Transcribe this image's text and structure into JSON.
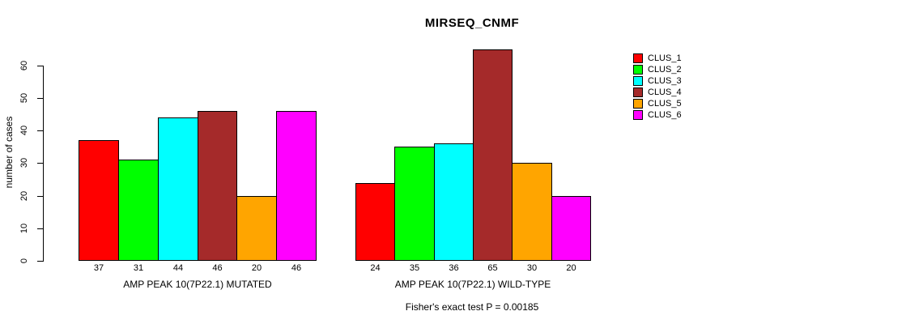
{
  "chart_data": {
    "type": "bar",
    "title": "MIRSEQ_CNMF",
    "ylabel": "number of cases",
    "yticks": [
      0,
      10,
      20,
      30,
      40,
      50,
      60
    ],
    "ylim": [
      0,
      65
    ],
    "grid": false,
    "legend_position": "right",
    "categories": [
      "AMP PEAK 10(7P22.1) MUTATED",
      "AMP PEAK 10(7P22.1) WILD-TYPE"
    ],
    "series": [
      {
        "name": "CLUS_1",
        "color": "#FF0000",
        "values": [
          37,
          24
        ]
      },
      {
        "name": "CLUS_2",
        "color": "#00FF00",
        "values": [
          31,
          35
        ]
      },
      {
        "name": "CLUS_3",
        "color": "#00FFFF",
        "values": [
          44,
          36
        ]
      },
      {
        "name": "CLUS_4",
        "color": "#A52A2A",
        "values": [
          46,
          65
        ]
      },
      {
        "name": "CLUS_5",
        "color": "#FFA500",
        "values": [
          20,
          30
        ]
      },
      {
        "name": "CLUS_6",
        "color": "#FF00FF",
        "values": [
          46,
          20
        ]
      }
    ],
    "bar_value_labels": [
      [
        37,
        31,
        44,
        46,
        20,
        46
      ],
      [
        24,
        35,
        36,
        65,
        30,
        20
      ]
    ],
    "annotation": "Fisher's exact test P = 0.00185",
    "axis_color": "#000000",
    "background_color": "#FFFFFF"
  }
}
